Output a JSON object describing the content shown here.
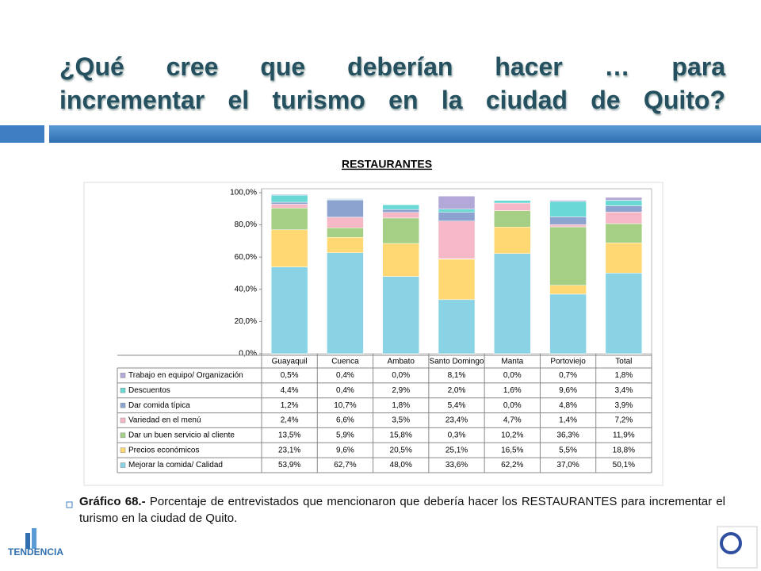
{
  "title": [
    "¿Qué cree que deberían hacer … para",
    "incrementar el turismo en la ciudad de Quito?"
  ],
  "chart_data": {
    "type": "stacked_bar",
    "title": "RESTAURANTES",
    "categories": [
      "Guayaquil",
      "Cuenca",
      "Ambato",
      "Santo Domingo",
      "Manta",
      "Portoviejo",
      "Total"
    ],
    "ylim": [
      0,
      100
    ],
    "yticks": [
      {
        "value": 0,
        "label": "0,0%"
      },
      {
        "value": 20,
        "label": "20,0%"
      },
      {
        "value": 40,
        "label": "40,0%"
      },
      {
        "value": 60,
        "label": "60,0%"
      },
      {
        "value": 80,
        "label": "80,0%"
      },
      {
        "value": 100,
        "label": "100,0%"
      }
    ],
    "grid": false,
    "series": [
      {
        "name": "Trabajo en equipo/ Organización",
        "color": "#b3a8d8",
        "values": [
          0.5,
          0.4,
          0.0,
          8.1,
          0.0,
          0.7,
          1.8
        ],
        "value_labels": [
          "0,5%",
          "0,4%",
          "0,0%",
          "8,1%",
          "0,0%",
          "0,7%",
          "1,8%"
        ]
      },
      {
        "name": "Descuentos",
        "color": "#6ad8d4",
        "values": [
          4.4,
          0.4,
          2.9,
          2.0,
          1.6,
          9.6,
          3.4
        ],
        "value_labels": [
          "4,4%",
          "0,4%",
          "2,9%",
          "2,0%",
          "1,6%",
          "9,6%",
          "3,4%"
        ]
      },
      {
        "name": "Dar comida típica",
        "color": "#8ca3d0",
        "values": [
          1.2,
          10.7,
          1.8,
          5.4,
          0.0,
          4.8,
          3.9
        ],
        "value_labels": [
          "1,2%",
          "10,7%",
          "1,8%",
          "5,4%",
          "0,0%",
          "4,8%",
          "3,9%"
        ]
      },
      {
        "name": "Variedad en el menú",
        "color": "#f6b8c6",
        "values": [
          2.4,
          6.6,
          3.5,
          23.4,
          4.7,
          1.4,
          7.2
        ],
        "value_labels": [
          "2,4%",
          "6,6%",
          "3,5%",
          "23,4%",
          "4,7%",
          "1,4%",
          "7,2%"
        ]
      },
      {
        "name": "Dar un buen servicio al cliente",
        "color": "#a4cf84",
        "values": [
          13.5,
          5.9,
          15.8,
          0.3,
          10.2,
          36.3,
          11.9
        ],
        "value_labels": [
          "13,5%",
          "5,9%",
          "15,8%",
          "0,3%",
          "10,2%",
          "36,3%",
          "11,9%"
        ]
      },
      {
        "name": "Precios económicos",
        "color": "#ffd873",
        "values": [
          23.1,
          9.6,
          20.5,
          25.1,
          16.5,
          5.5,
          18.8
        ],
        "value_labels": [
          "23,1%",
          "9,6%",
          "20,5%",
          "25,1%",
          "16,5%",
          "5,5%",
          "18,8%"
        ]
      },
      {
        "name": "Mejorar la comida/ Calidad",
        "color": "#8ad3e4",
        "values": [
          53.9,
          62.7,
          48.0,
          33.6,
          62.2,
          37.0,
          50.1
        ],
        "value_labels": [
          "53,9%",
          "62,7%",
          "48,0%",
          "33,6%",
          "62,2%",
          "37,0%",
          "50,1%"
        ]
      }
    ]
  },
  "caption": {
    "label": "Gráfico 68.-",
    "text": " Porcentaje de entrevistados que mencionaron que debería hacer los RESTAURANTES para incrementar el turismo en la ciudad de Quito."
  },
  "logo": "TENDENCIA"
}
